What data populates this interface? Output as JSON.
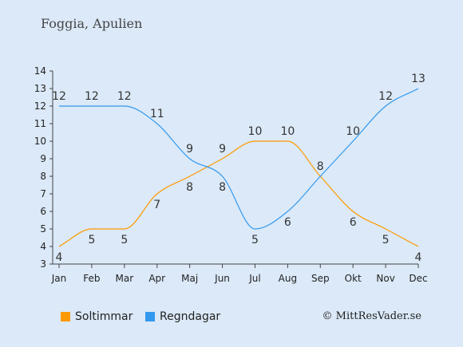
{
  "title": "Foggia, Apulien",
  "copyright": "© MittResVader.se",
  "colors": {
    "background": "#dbe9f8",
    "sun": "#ff9900",
    "rain": "#3399ee",
    "axis": "#444444"
  },
  "chart_data": {
    "type": "line",
    "categories": [
      "Jan",
      "Feb",
      "Mar",
      "Apr",
      "Maj",
      "Jun",
      "Jul",
      "Aug",
      "Sep",
      "Okt",
      "Nov",
      "Dec"
    ],
    "ylim": [
      3,
      14
    ],
    "yticks": [
      3,
      4,
      5,
      6,
      7,
      8,
      9,
      10,
      11,
      12,
      13,
      14
    ],
    "grid": false,
    "legend_position": "bottom-left",
    "series": [
      {
        "name": "Soltimmar",
        "color": "#ff9900",
        "values": [
          4,
          5,
          5,
          7,
          8,
          9,
          10,
          10,
          8,
          6,
          5,
          4
        ]
      },
      {
        "name": "Regndagar",
        "color": "#3399ee",
        "values": [
          12,
          12,
          12,
          11,
          9,
          8,
          5,
          6,
          8,
          10,
          12,
          13
        ]
      }
    ]
  }
}
